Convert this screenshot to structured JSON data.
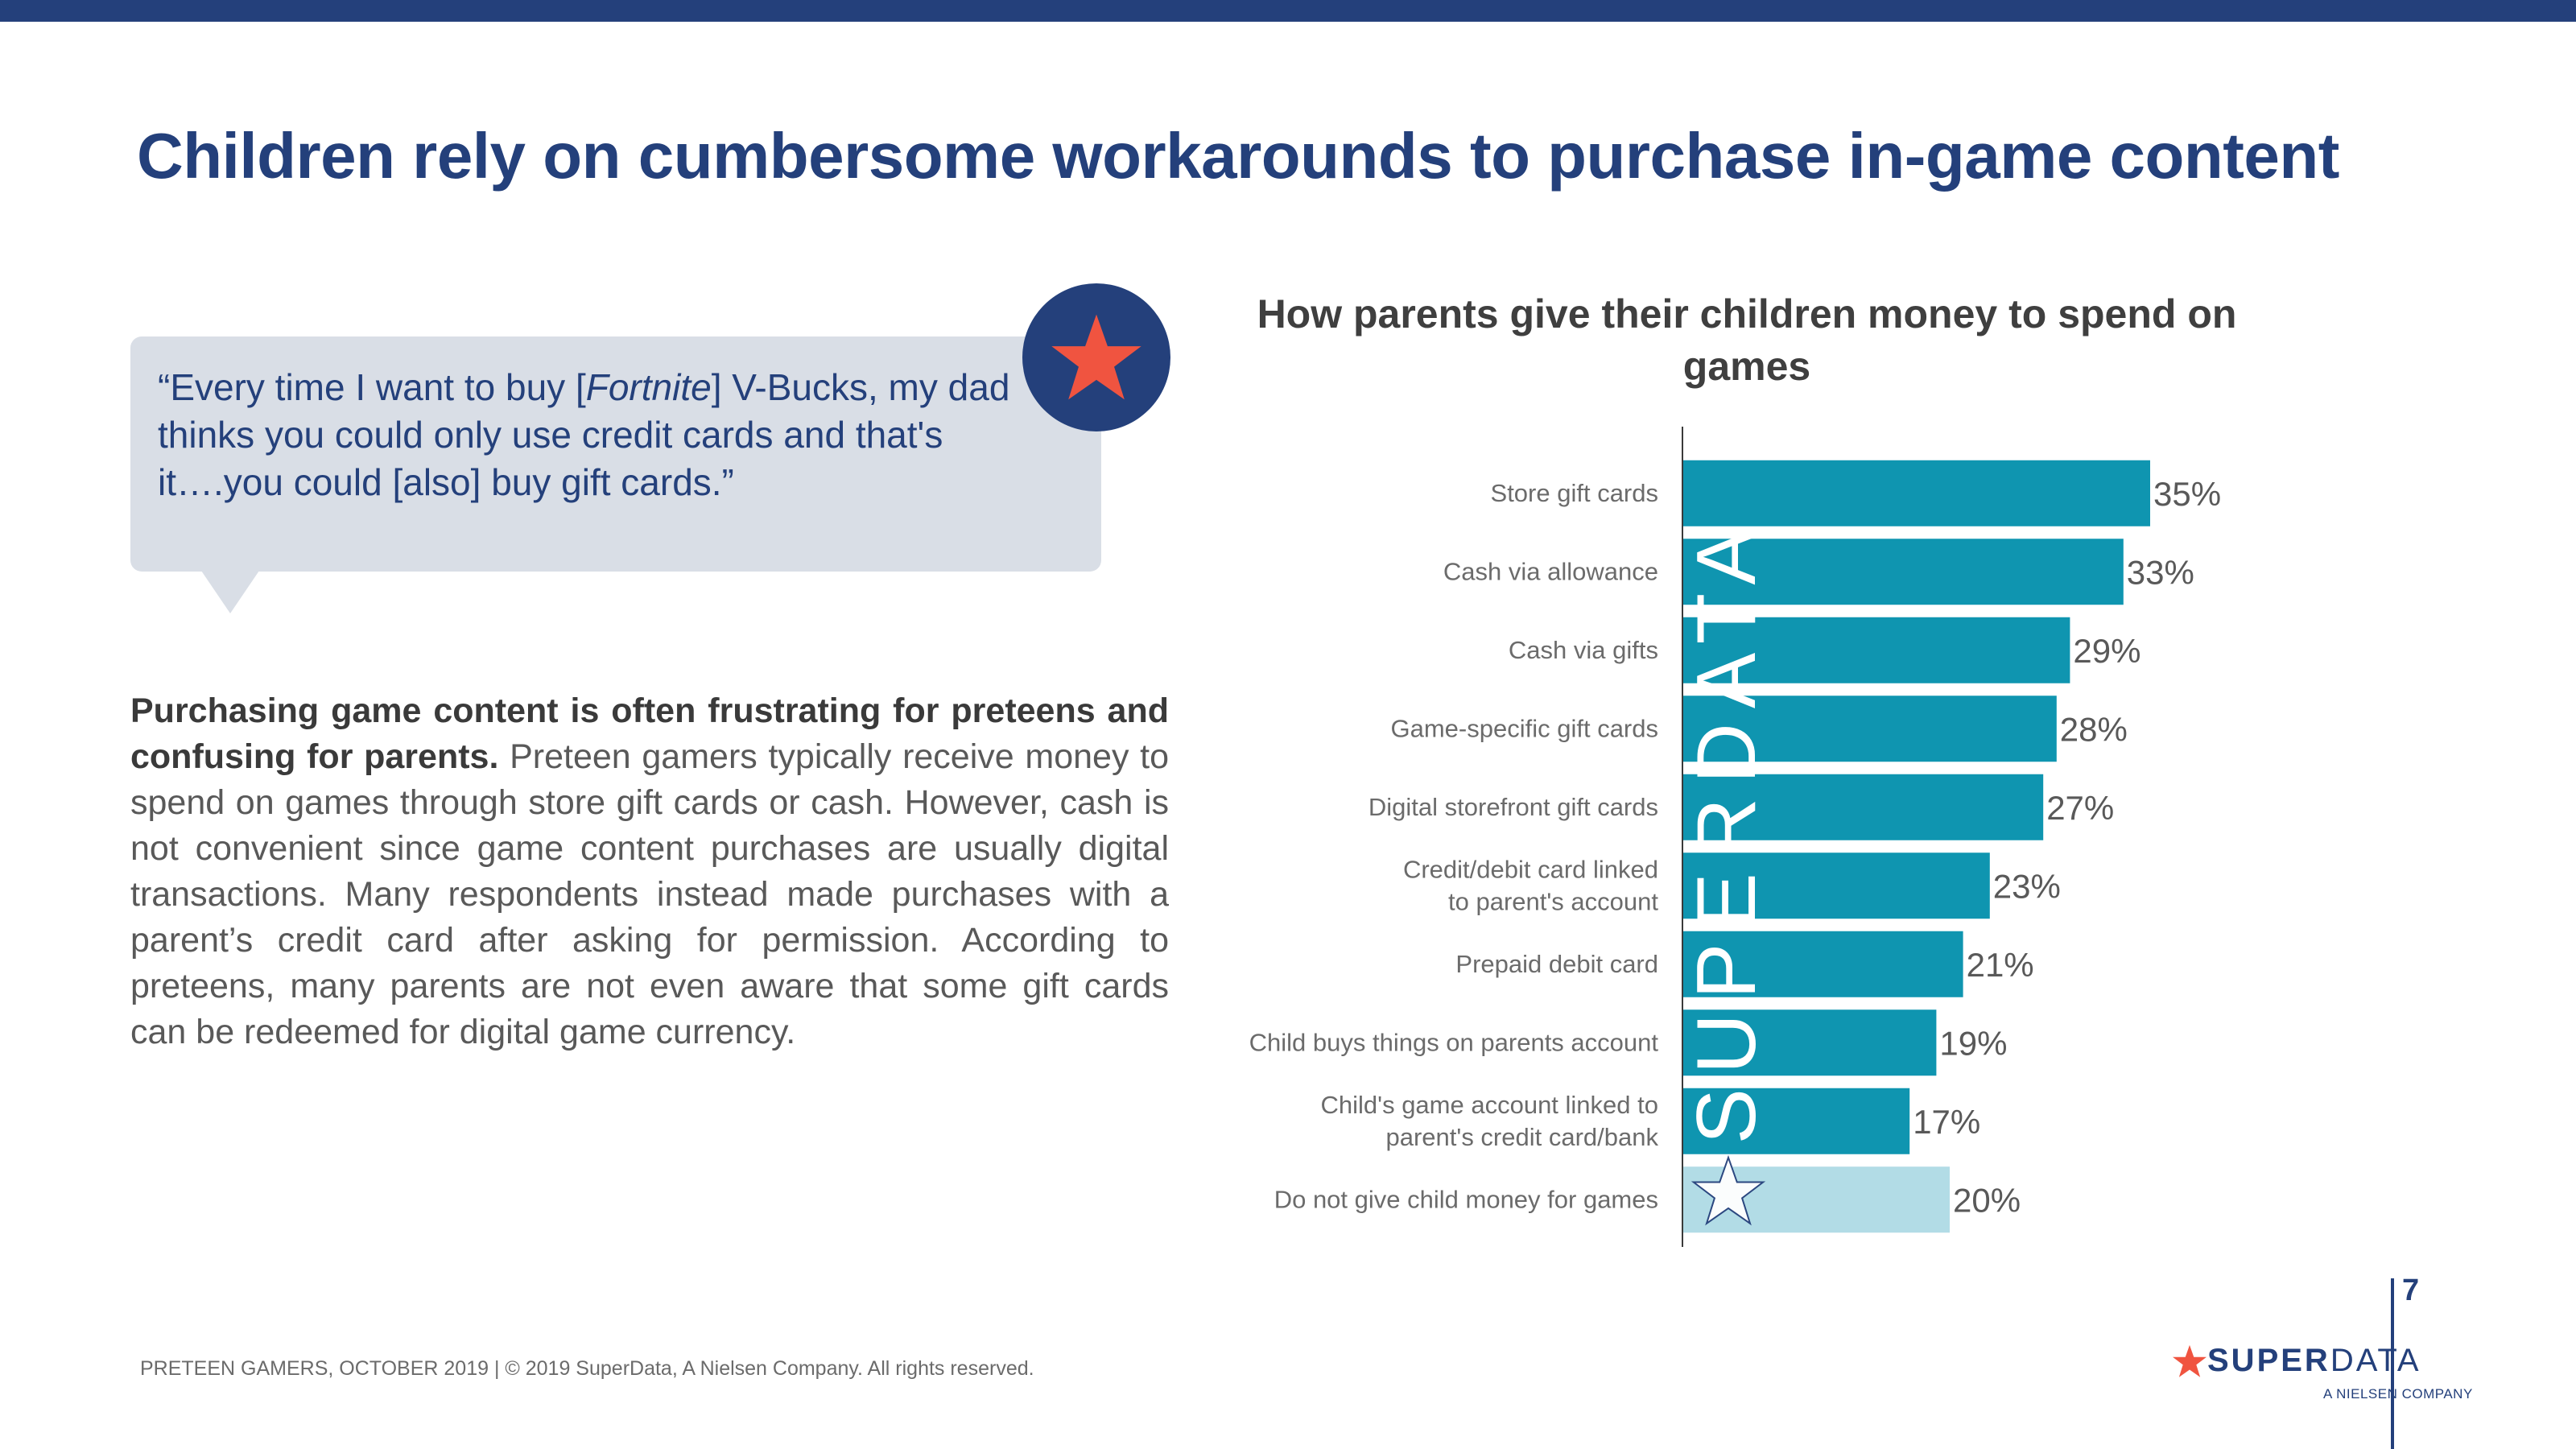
{
  "slide": {
    "title": "Children rely on cumbersome workarounds to purchase in-game content"
  },
  "quote": {
    "before": "“Every time I want to buy [",
    "italic": "Fortnite",
    "after": "] V-Bucks, my dad thinks you could only use credit cards and that's it….you could [also] buy gift cards.”"
  },
  "body": {
    "lead": "Purchasing game content is often frustrating for preteens and confusing for parents.",
    "rest": " Preteen gamers typically receive money to spend on games through store gift cards or cash. However, cash is not convenient since game content purchases are usually digital transactions. Many respondents instead made purchases with a parent’s credit card after asking for permission. According to preteens, many parents are not even aware that some gift cards can be redeemed for digital game currency."
  },
  "chart_data": {
    "type": "bar",
    "orientation": "horizontal",
    "title": "How parents give their children money to spend on games",
    "categories": [
      [
        "Store gift cards"
      ],
      [
        "Cash via allowance"
      ],
      [
        "Cash via gifts"
      ],
      [
        "Game-specific gift cards"
      ],
      [
        "Digital storefront gift cards"
      ],
      [
        "Credit/debit card linked",
        "to parent's account"
      ],
      [
        "Prepaid debit card"
      ],
      [
        "Child buys things on parents account"
      ],
      [
        "Child's game account linked to",
        "parent's credit card/bank"
      ],
      [
        "Do not give child money for games"
      ]
    ],
    "values": [
      35,
      33,
      29,
      28,
      27,
      23,
      21,
      19,
      17,
      20
    ],
    "value_labels": [
      "35%",
      "33%",
      "29%",
      "28%",
      "27%",
      "23%",
      "21%",
      "19%",
      "17%",
      "20%"
    ],
    "bar_colors": [
      "#0f95b0",
      "#0f95b0",
      "#0f95b0",
      "#0f95b0",
      "#0f95b0",
      "#0f95b0",
      "#0f95b0",
      "#0f95b0",
      "#0f95b0",
      "#b2dce6"
    ],
    "xlim": [
      0,
      35
    ],
    "grid": false,
    "watermark": "SUPERDATA"
  },
  "footer": {
    "text": "PRETEEN GAMERS, OCTOBER 2019  |  © 2019 SuperData, A Nielsen Company. All rights reserved.",
    "page_number": "7",
    "logo_bold": "SUPER",
    "logo_light": "DATA",
    "logo_sub": "A NIELSEN COMPANY"
  },
  "colors": {
    "navy": "#24407b",
    "bar": "#0f95b0",
    "bar_light": "#b2dce6",
    "star": "#f05440",
    "bubble": "#d9dee6"
  }
}
